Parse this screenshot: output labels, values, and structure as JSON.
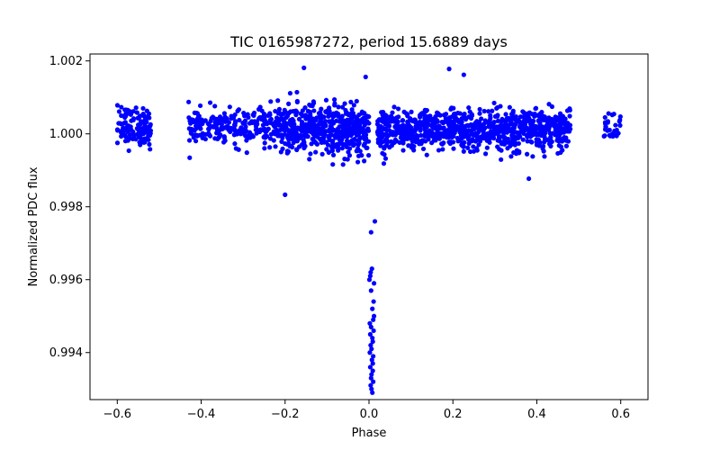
{
  "chart_data": {
    "type": "scatter",
    "title": "TIC 0165987272, period 15.6889 days",
    "xlabel": "Phase",
    "ylabel": "Normalized PDC flux",
    "xlim": [
      -0.665,
      0.665
    ],
    "ylim": [
      0.99271,
      1.00219
    ],
    "x_ticks": [
      -0.6,
      -0.4,
      -0.2,
      0.0,
      0.2,
      0.4,
      0.6
    ],
    "x_tick_labels": [
      "−0.6",
      "−0.4",
      "−0.2",
      "0.0",
      "0.2",
      "0.4",
      "0.6"
    ],
    "y_ticks": [
      0.994,
      0.996,
      0.998,
      1.0,
      1.002
    ],
    "y_tick_labels": [
      "0.994",
      "0.996",
      "0.998",
      "1.000",
      "1.002"
    ],
    "marker_color": "#0000ff",
    "series": [
      {
        "name": "flux",
        "clusters": [
          {
            "x_range": [
              -0.6,
              -0.52
            ],
            "center": 1.0002,
            "spread": 0.0005,
            "count": 120
          },
          {
            "x_range": [
              -0.43,
              -0.2
            ],
            "center": 1.0002,
            "spread": 0.00045,
            "count": 260
          },
          {
            "x_range": [
              -0.21,
              0.0
            ],
            "center": 1.0001,
            "spread": 0.0006,
            "count": 520
          },
          {
            "x_range": [
              0.02,
              0.48
            ],
            "center": 1.0001,
            "spread": 0.0005,
            "count": 900
          },
          {
            "x_range": [
              0.56,
              0.6
            ],
            "center": 1.0002,
            "spread": 0.0004,
            "count": 30
          }
        ],
        "transit_points": [
          {
            "x": 0.004,
            "y": 0.9931
          },
          {
            "x": 0.006,
            "y": 0.993
          },
          {
            "x": 0.008,
            "y": 0.9929
          },
          {
            "x": 0.005,
            "y": 0.9933
          },
          {
            "x": 0.009,
            "y": 0.9935
          },
          {
            "x": 0.003,
            "y": 0.9936
          },
          {
            "x": 0.007,
            "y": 0.9938
          },
          {
            "x": 0.01,
            "y": 0.9939
          },
          {
            "x": 0.002,
            "y": 0.994
          },
          {
            "x": 0.006,
            "y": 0.9941
          },
          {
            "x": 0.004,
            "y": 0.9942
          },
          {
            "x": 0.009,
            "y": 0.9943
          },
          {
            "x": 0.008,
            "y": 0.9944
          },
          {
            "x": 0.003,
            "y": 0.9945
          },
          {
            "x": 0.011,
            "y": 0.9946
          },
          {
            "x": 0.005,
            "y": 0.9947
          },
          {
            "x": 0.002,
            "y": 0.9948
          },
          {
            "x": 0.01,
            "y": 0.9949
          },
          {
            "x": 0.012,
            "y": 0.995
          },
          {
            "x": 0.008,
            "y": 0.9952
          },
          {
            "x": 0.011,
            "y": 0.9954
          },
          {
            "x": 0.005,
            "y": 0.9957
          },
          {
            "x": 0.012,
            "y": 0.9959
          },
          {
            "x": 0.001,
            "y": 0.996
          },
          {
            "x": 0.003,
            "y": 0.9961
          },
          {
            "x": 0.007,
            "y": 0.9963
          },
          {
            "x": 0.014,
            "y": 0.9976
          },
          {
            "x": 0.005,
            "y": 0.9973
          },
          {
            "x": 0.004,
            "y": 0.9962
          },
          {
            "x": 0.009,
            "y": 0.9937
          },
          {
            "x": 0.006,
            "y": 0.9934
          },
          {
            "x": 0.01,
            "y": 0.9932
          }
        ],
        "outliers": [
          {
            "x": -0.2,
            "y": 0.99833
          },
          {
            "x": -0.155,
            "y": 1.00181
          },
          {
            "x": 0.191,
            "y": 1.00178
          },
          {
            "x": 0.226,
            "y": 1.00162
          },
          {
            "x": -0.008,
            "y": 1.00156
          },
          {
            "x": 0.381,
            "y": 0.99877
          }
        ]
      }
    ]
  }
}
